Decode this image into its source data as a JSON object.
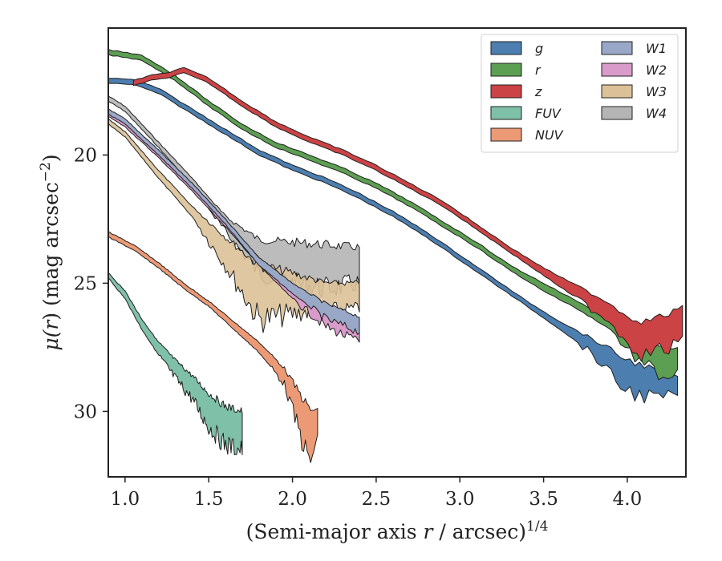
{
  "chart_data": {
    "type": "area",
    "xlabel": "(Semi-major axis r / arcsec)^{1/4}",
    "xlabel_parts": {
      "pre": "(Semi-major axis ",
      "var": "r",
      "post": " / arcsec)",
      "sup": "1/4"
    },
    "ylabel": "μ(r) (mag arcsec^{-2})",
    "ylabel_parts": {
      "mu": "μ(",
      "var": "r",
      "mid": ") (mag arcsec",
      "sup": "−2",
      "end": ")"
    },
    "xlim": [
      0.9,
      4.35
    ],
    "ylim": [
      32.55,
      15.05
    ],
    "y_inverted": true,
    "xticks": [
      1.0,
      1.5,
      2.0,
      2.5,
      3.0,
      3.5,
      4.0
    ],
    "xtick_labels": [
      "1.0",
      "1.5",
      "2.0",
      "2.5",
      "3.0",
      "3.5",
      "4.0"
    ],
    "yticks": [
      20,
      25,
      30
    ],
    "ytick_labels": [
      "20",
      "25",
      "30"
    ],
    "grid": false,
    "legend_position": "top-right",
    "legend_columns": 2,
    "series": [
      {
        "name": "g",
        "color": "#4c7eb0",
        "x": [
          0.9,
          1.05,
          1.2,
          1.4,
          1.6,
          1.8,
          2.0,
          2.2,
          2.4,
          2.6,
          2.8,
          3.0,
          3.2,
          3.4,
          3.6,
          3.8,
          3.9,
          4.0,
          4.1,
          4.2,
          4.3
        ],
        "y_upper": [
          17.0,
          17.05,
          17.4,
          18.2,
          19.0,
          19.8,
          20.4,
          20.9,
          21.5,
          22.2,
          23.0,
          23.9,
          24.8,
          25.7,
          26.5,
          27.2,
          27.6,
          28.0,
          28.2,
          28.5,
          28.6
        ],
        "y_lower": [
          17.2,
          17.25,
          17.6,
          18.4,
          19.2,
          20.0,
          20.6,
          21.1,
          21.7,
          22.4,
          23.2,
          24.1,
          25.0,
          25.9,
          26.8,
          27.8,
          28.6,
          29.2,
          29.4,
          29.5,
          29.3
        ]
      },
      {
        "name": "r",
        "color": "#5c9e52",
        "x": [
          0.9,
          1.1,
          1.3,
          1.5,
          1.7,
          1.9,
          2.1,
          2.3,
          2.5,
          2.7,
          2.9,
          3.1,
          3.3,
          3.5,
          3.7,
          3.9,
          4.0,
          4.1,
          4.2,
          4.3
        ],
        "y_upper": [
          15.9,
          16.1,
          16.9,
          17.9,
          18.8,
          19.5,
          20.0,
          20.5,
          21.1,
          21.8,
          22.6,
          23.4,
          24.3,
          25.0,
          25.7,
          26.4,
          26.8,
          27.1,
          27.4,
          27.6
        ],
        "y_lower": [
          16.1,
          16.3,
          17.1,
          18.1,
          19.0,
          19.7,
          20.2,
          20.7,
          21.3,
          22.0,
          22.8,
          23.6,
          24.5,
          25.3,
          26.0,
          26.8,
          27.6,
          28.2,
          28.6,
          28.6
        ]
      },
      {
        "name": "z",
        "color": "#cb4345",
        "x": [
          1.05,
          1.15,
          1.25,
          1.35,
          1.5,
          1.7,
          1.9,
          2.1,
          2.3,
          2.5,
          2.7,
          2.9,
          3.1,
          3.3,
          3.5,
          3.7,
          3.9,
          4.0,
          4.1,
          4.2,
          4.33
        ],
        "y_upper": [
          17.1,
          16.9,
          16.8,
          16.6,
          17.0,
          17.9,
          18.7,
          19.3,
          19.8,
          20.4,
          21.1,
          21.8,
          22.7,
          23.6,
          24.4,
          25.1,
          25.8,
          26.3,
          26.5,
          26.3,
          26.0
        ],
        "y_lower": [
          17.3,
          17.1,
          17.0,
          16.8,
          17.2,
          18.1,
          18.9,
          19.5,
          20.0,
          20.6,
          21.3,
          22.0,
          22.9,
          23.8,
          24.7,
          25.6,
          26.5,
          27.3,
          27.8,
          27.6,
          27.4
        ]
      },
      {
        "name": "FUV",
        "color": "#7fc0a8",
        "x": [
          0.9,
          1.0,
          1.1,
          1.2,
          1.3,
          1.4,
          1.5,
          1.6,
          1.7
        ],
        "y_upper": [
          24.6,
          25.3,
          26.4,
          27.3,
          28.0,
          28.6,
          29.3,
          29.8,
          30.0
        ],
        "y_lower": [
          24.8,
          25.6,
          26.8,
          27.8,
          28.7,
          29.5,
          30.6,
          31.3,
          31.5
        ]
      },
      {
        "name": "NUV",
        "color": "#ec9a76",
        "x": [
          0.9,
          1.05,
          1.2,
          1.35,
          1.5,
          1.65,
          1.8,
          1.95,
          2.1,
          2.15
        ],
        "y_upper": [
          23.0,
          23.5,
          24.2,
          25.0,
          25.7,
          26.5,
          27.3,
          28.3,
          29.9,
          30.0
        ],
        "y_lower": [
          23.2,
          23.7,
          24.4,
          25.2,
          25.9,
          26.8,
          27.7,
          28.9,
          32.0,
          31.2
        ]
      },
      {
        "name": "W1",
        "color": "#9aa8c8",
        "x": [
          0.9,
          1.0,
          1.2,
          1.4,
          1.6,
          1.8,
          2.0,
          2.2,
          2.4
        ],
        "y_upper": [
          18.2,
          18.6,
          19.8,
          21.1,
          22.5,
          24.0,
          25.0,
          25.8,
          26.3
        ],
        "y_lower": [
          18.4,
          18.8,
          20.0,
          21.3,
          22.7,
          24.3,
          25.4,
          26.4,
          26.9
        ]
      },
      {
        "name": "W2",
        "color": "#d99bc9",
        "x": [
          0.9,
          1.0,
          1.2,
          1.4,
          1.6,
          1.8,
          2.0,
          2.2,
          2.4
        ],
        "y_upper": [
          18.3,
          18.7,
          19.9,
          21.2,
          22.6,
          24.0,
          25.1,
          26.0,
          26.6
        ],
        "y_lower": [
          18.5,
          18.9,
          20.1,
          21.4,
          22.8,
          24.3,
          25.6,
          26.7,
          27.3
        ]
      },
      {
        "name": "W3",
        "color": "#dcc198",
        "x": [
          0.9,
          1.0,
          1.2,
          1.4,
          1.6,
          1.8,
          2.0,
          2.2,
          2.4
        ],
        "y_upper": [
          18.6,
          19.1,
          20.6,
          22.0,
          23.2,
          24.3,
          24.6,
          25.0,
          25.0
        ],
        "y_lower": [
          18.8,
          19.3,
          20.9,
          22.4,
          24.3,
          26.4,
          26.2,
          26.0,
          26.0
        ]
      },
      {
        "name": "W4",
        "color": "#b5b5b5",
        "x": [
          0.9,
          1.0,
          1.2,
          1.4,
          1.6,
          1.8,
          2.0,
          2.2,
          2.4
        ],
        "y_upper": [
          17.7,
          18.1,
          19.5,
          20.9,
          22.4,
          23.3,
          23.4,
          23.5,
          23.6
        ],
        "y_lower": [
          17.9,
          18.3,
          19.7,
          21.2,
          23.0,
          24.6,
          25.0,
          25.2,
          25.0
        ]
      }
    ]
  },
  "colors": {
    "g": "#4c7eb0",
    "r": "#5c9e52",
    "z": "#cb4345",
    "FUV": "#7fc0a8",
    "NUV": "#ec9a76",
    "W1": "#9aa8c8",
    "W2": "#d99bc9",
    "W3": "#dcc198",
    "W4": "#b5b5b5"
  },
  "legend": {
    "entries": [
      "g",
      "r",
      "z",
      "FUV",
      "NUV",
      "W1",
      "W2",
      "W3",
      "W4"
    ]
  }
}
